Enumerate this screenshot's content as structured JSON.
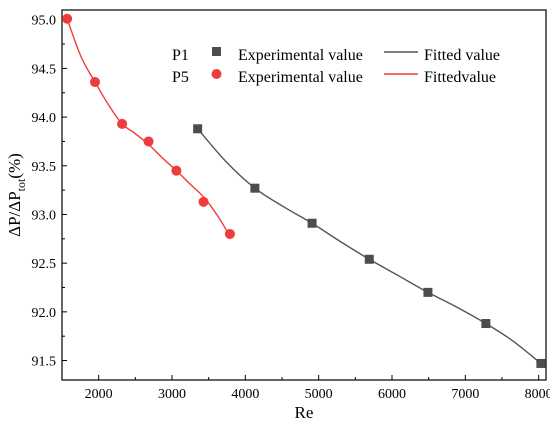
{
  "chart_data": {
    "type": "scatter",
    "xlabel": "Re",
    "ylabel": {
      "main": "ΔP/ΔP",
      "sub": "tot",
      "tail": "(%)"
    },
    "xlim": [
      1500,
      8100
    ],
    "ylim": [
      91.3,
      95.1
    ],
    "xticks": [
      "2000",
      "3000",
      "4000",
      "5000",
      "6000",
      "7000",
      "8000"
    ],
    "yticks": [
      "91.5",
      "92.0",
      "92.5",
      "93.0",
      "93.5",
      "94.0",
      "94.5",
      "95.0"
    ],
    "grid": false,
    "legend_position": "top-right",
    "series": [
      {
        "name": "P1",
        "label": "Experimental value",
        "marker": "square",
        "color": "#4d4d4d",
        "x": [
          3350,
          4130,
          4910,
          5690,
          6490,
          7280,
          8030
        ],
        "y": [
          93.88,
          93.27,
          92.91,
          92.54,
          92.2,
          91.88,
          91.47
        ]
      },
      {
        "name": "P5",
        "label": "Experimental value",
        "marker": "circle",
        "color": "#ee3b3b",
        "x": [
          1570,
          1950,
          2320,
          2680,
          3060,
          3430,
          3790
        ],
        "y": [
          95.01,
          94.36,
          93.93,
          93.75,
          93.45,
          93.13,
          92.8
        ]
      }
    ],
    "fits": [
      {
        "label": "Fitted value",
        "color": "#555555",
        "x": [
          3350,
          3740,
          4130,
          4520,
          4910,
          5300,
          5690,
          6090,
          6490,
          6880,
          7280,
          7650,
          8030
        ],
        "y": [
          93.88,
          93.54,
          93.27,
          93.08,
          92.91,
          92.72,
          92.54,
          92.37,
          92.2,
          92.05,
          91.88,
          91.7,
          91.47
        ]
      },
      {
        "label": "Fittedvalue",
        "color": "#ee3b3b",
        "x": [
          1570,
          1760,
          1950,
          2140,
          2320,
          2500,
          2680,
          2870,
          3060,
          3250,
          3430,
          3610,
          3790
        ],
        "y": [
          95.01,
          94.62,
          94.36,
          94.12,
          93.93,
          93.83,
          93.72,
          93.58,
          93.45,
          93.31,
          93.18,
          93.0,
          92.78
        ]
      }
    ]
  }
}
